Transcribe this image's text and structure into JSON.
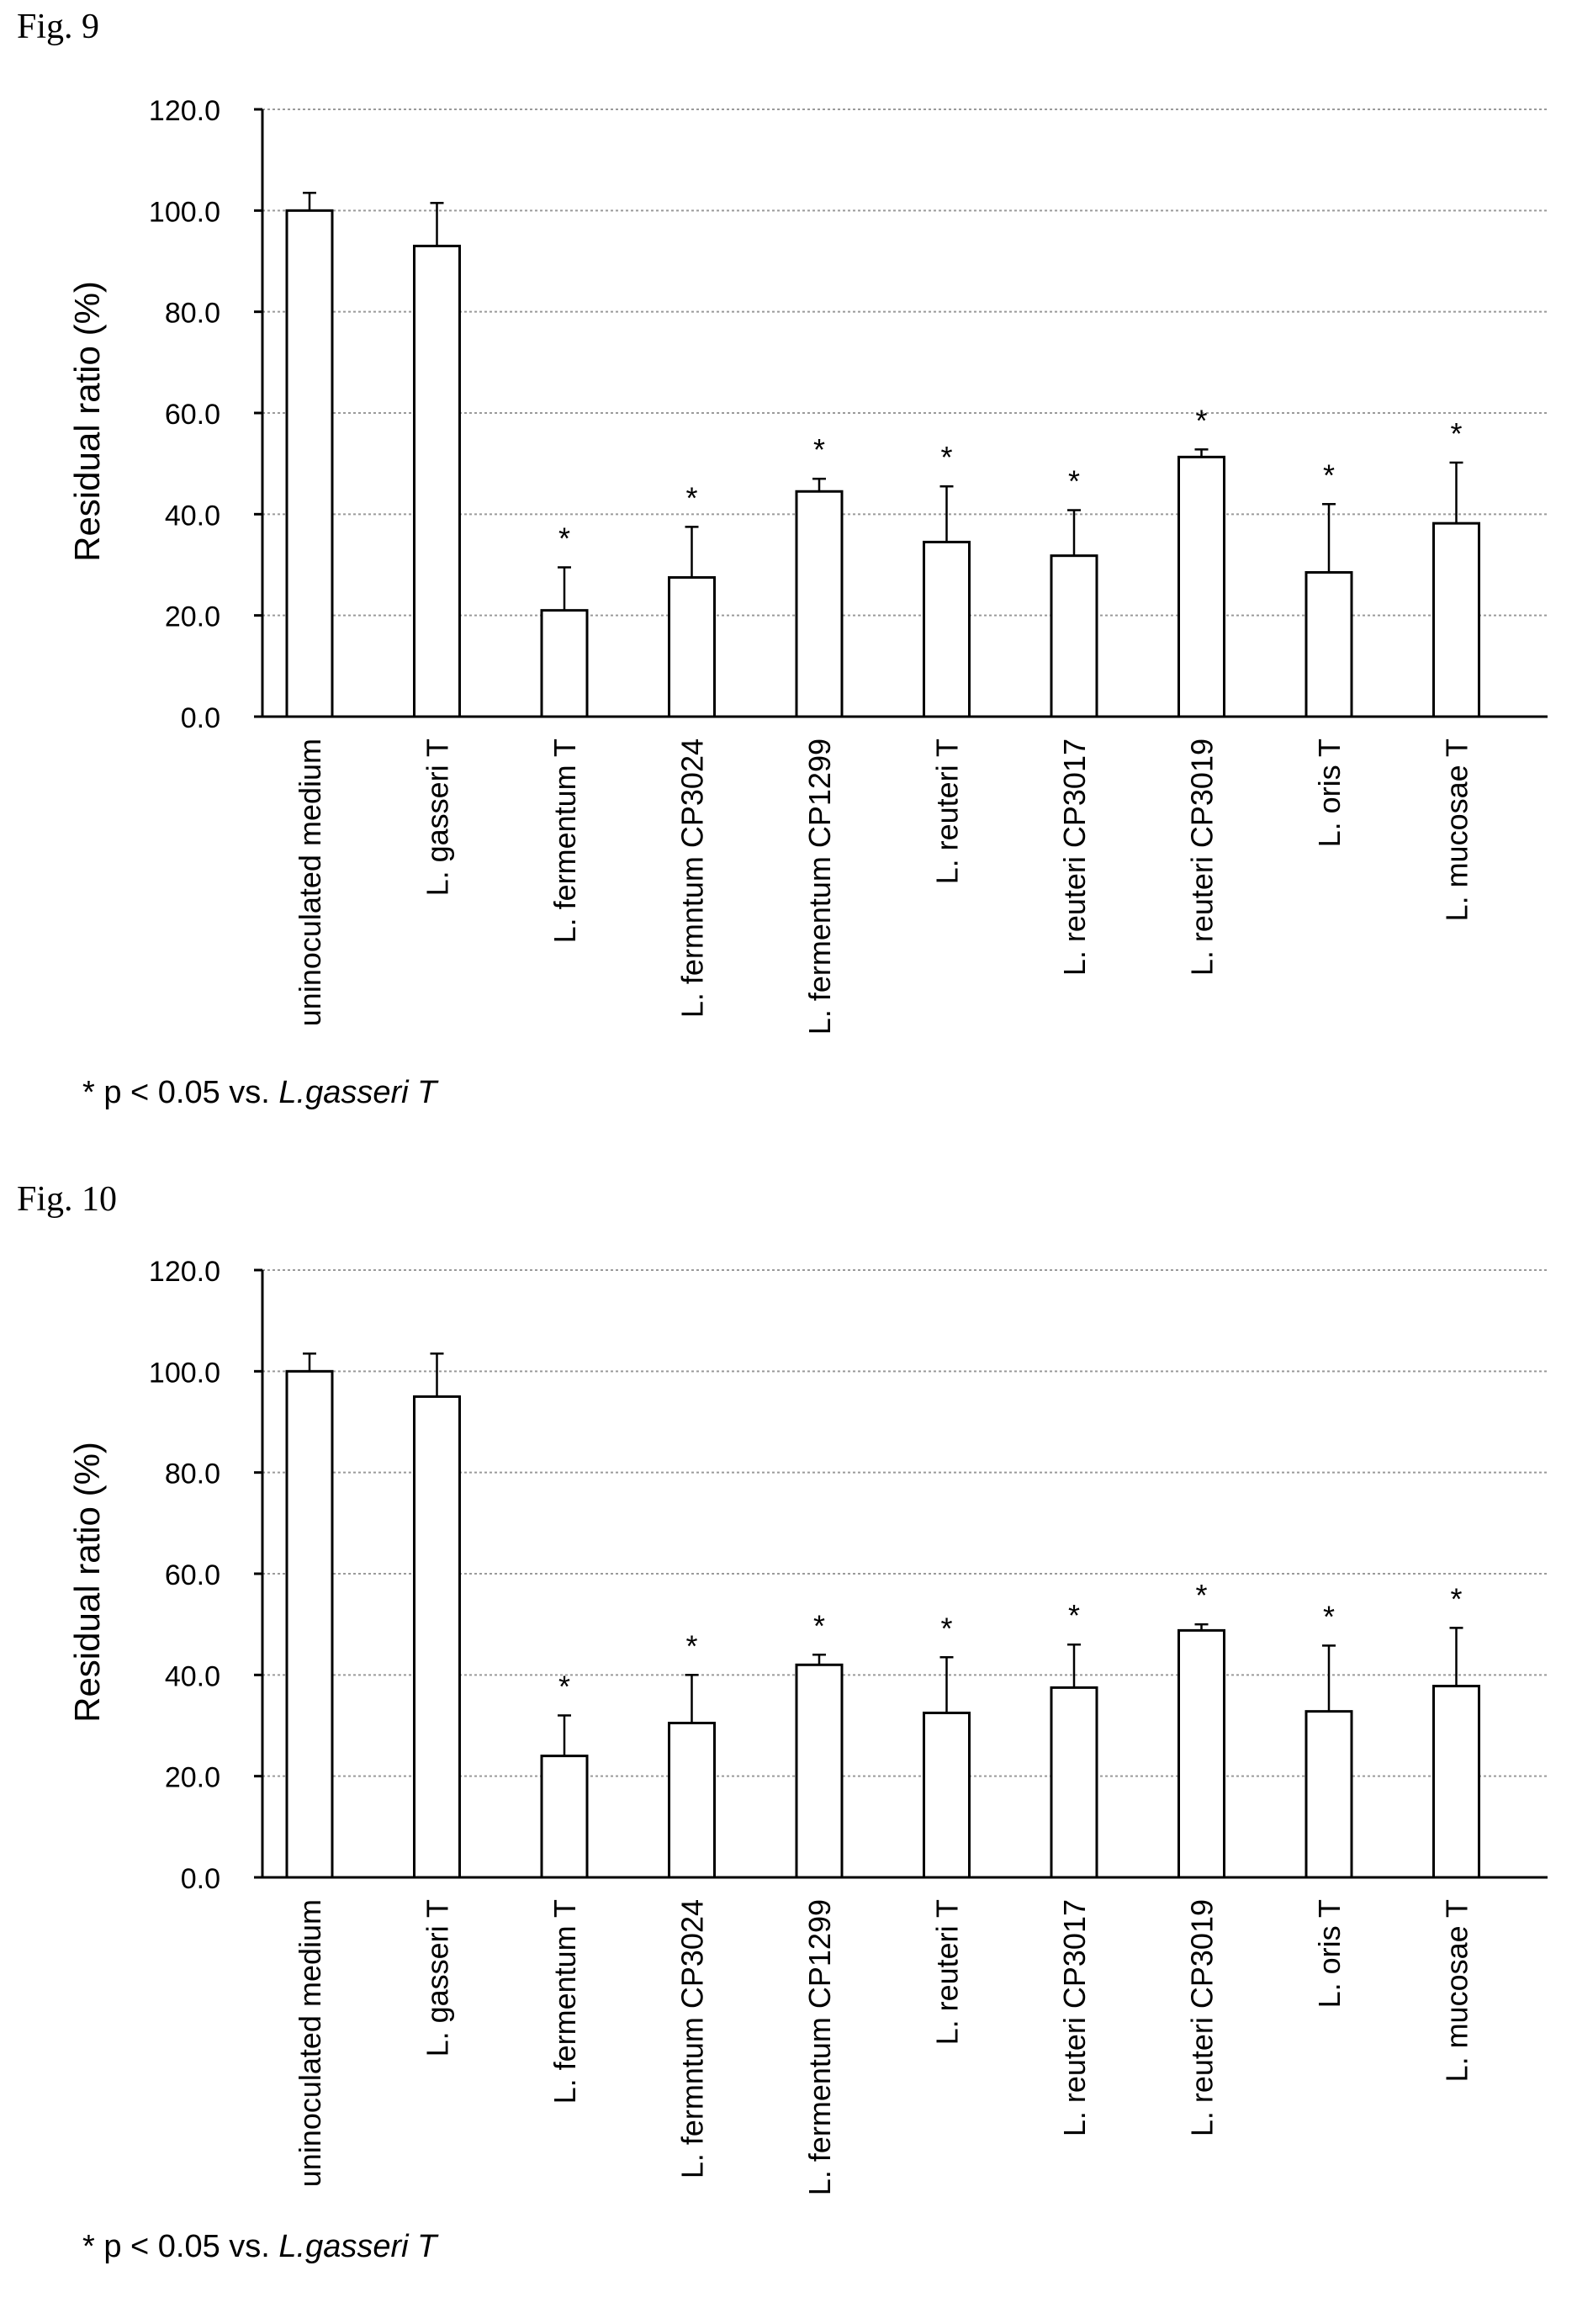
{
  "figures": [
    {
      "fig_label": "Fig.  9",
      "footnote_prefix": "* p < 0.05 vs. ",
      "footnote_ref": "L.gasseri T"
    },
    {
      "fig_label": "Fig.  10",
      "footnote_prefix": "* p < 0.05 vs. ",
      "footnote_ref": "L.gasseri T"
    }
  ],
  "chart_data": [
    {
      "type": "bar",
      "ylabel": "Residual ratio (%)",
      "ylim": [
        0,
        120
      ],
      "yticks": [
        "0.0",
        "20.0",
        "40.0",
        "60.0",
        "80.0",
        "100.0",
        "120.0"
      ],
      "grid": true,
      "categories": [
        "uninoculated medium",
        "L. gasseri T",
        "L. fermentum T",
        "L. fermntum CP3024",
        "L. fermentum CP1299",
        "L. reuteri T",
        "L. reuteri CP3017",
        "L. reuteri CP3019",
        "L. oris T",
        "L. mucosae T"
      ],
      "values": [
        100.0,
        93.0,
        21.0,
        27.5,
        44.5,
        34.5,
        31.8,
        51.3,
        28.5,
        38.2
      ],
      "error": [
        3.5,
        8.5,
        8.5,
        10.0,
        2.5,
        11.0,
        9.0,
        1.5,
        13.5,
        12.0
      ],
      "significance": [
        "",
        "",
        "*",
        "*",
        "*",
        "*",
        "*",
        "*",
        "*",
        "*"
      ]
    },
    {
      "type": "bar",
      "ylabel": "Residual ratio (%)",
      "ylim": [
        0,
        120
      ],
      "yticks": [
        "0.0",
        "20.0",
        "40.0",
        "60.0",
        "80.0",
        "100.0",
        "120.0"
      ],
      "grid": true,
      "categories": [
        "uninoculated medium",
        "L. gasseri T",
        "L. fermentum T",
        "L. fermntum CP3024",
        "L. fermentum CP1299",
        "L. reuteri T",
        "L. reuteri CP3017",
        "L. reuteri CP3019",
        "L. oris T",
        "L. mucosae T"
      ],
      "values": [
        100.0,
        95.0,
        24.0,
        30.5,
        42.0,
        32.5,
        37.5,
        48.8,
        32.8,
        37.8
      ],
      "error": [
        3.5,
        8.5,
        8.0,
        9.5,
        2.0,
        11.0,
        8.5,
        1.2,
        13.0,
        11.5
      ],
      "significance": [
        "",
        "",
        "*",
        "*",
        "*",
        "*",
        "*",
        "*",
        "*",
        "*"
      ]
    }
  ]
}
